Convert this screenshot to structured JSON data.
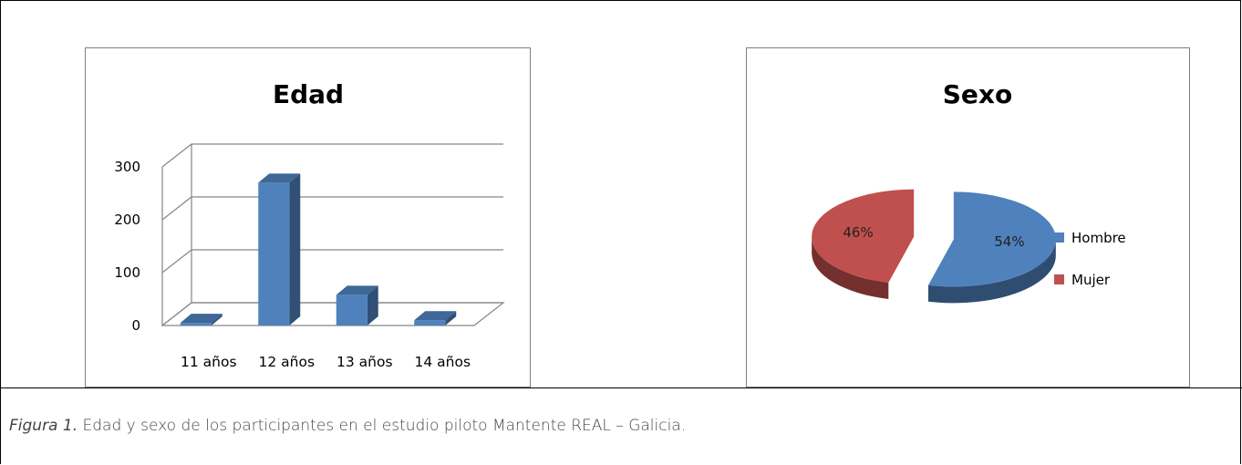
{
  "chart_data": [
    {
      "type": "bar",
      "title": "Edad",
      "categories": [
        "11 años",
        "12 años",
        "13 años",
        "14 años"
      ],
      "values": [
        5,
        270,
        58,
        10
      ],
      "ylim": [
        0,
        300
      ],
      "yticks": [
        0,
        100,
        200,
        300
      ],
      "bar_color": "#4f81bd",
      "grid": true
    },
    {
      "type": "pie",
      "title": "Sexo",
      "labels": [
        "Hombre",
        "Mujer"
      ],
      "values": [
        54,
        46
      ],
      "value_labels": [
        "54%",
        "46%"
      ],
      "colors": [
        "#4f81bd",
        "#c0504d"
      ],
      "legend_position": "right"
    }
  ],
  "caption": {
    "label": "Figura 1.",
    "text": " Edad y sexo de los participantes en el estudio piloto Mantente REAL – Galicia."
  }
}
